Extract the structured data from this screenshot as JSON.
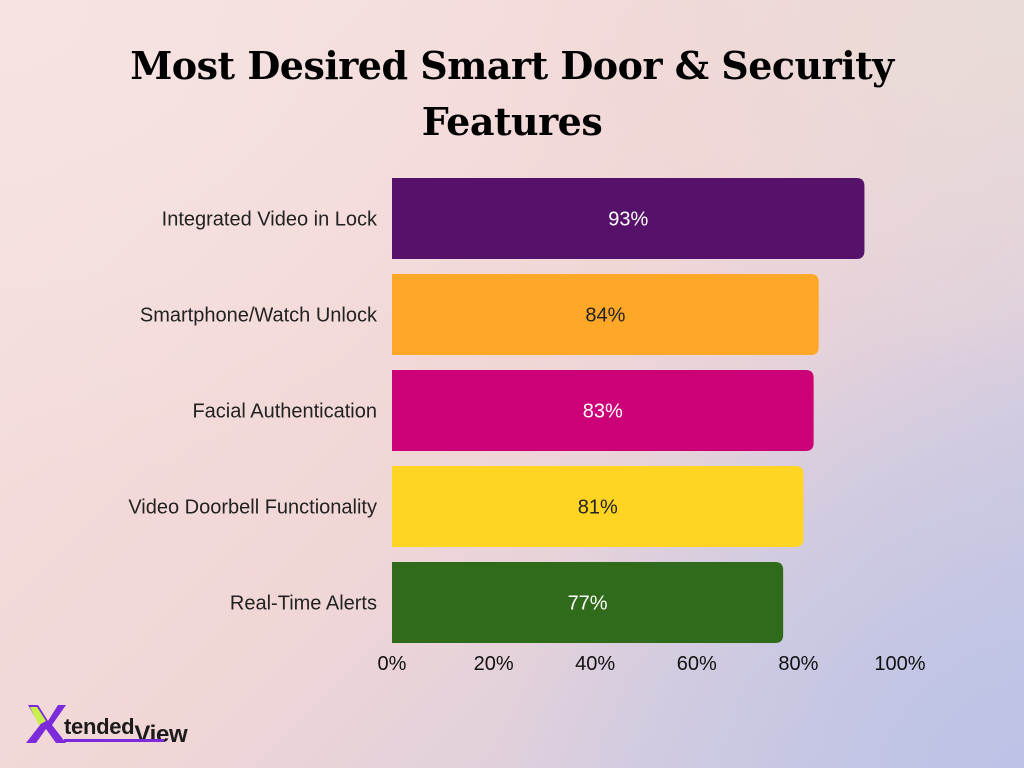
{
  "title_lines": [
    "Most Desired Smart Door & Security",
    "Features"
  ],
  "logo": {
    "text_main": "tended",
    "text_view": "View"
  },
  "chart_data": {
    "type": "bar",
    "orientation": "horizontal",
    "title": "Most Desired Smart Door & Security Features",
    "categories": [
      "Integrated Video in Lock",
      "Smartphone/Watch Unlock",
      "Facial Authentication",
      "Video Doorbell Functionality",
      "Real-Time Alerts"
    ],
    "values": [
      93,
      84,
      83,
      81,
      77
    ],
    "value_labels": [
      "93%",
      "84%",
      "83%",
      "81%",
      "77%"
    ],
    "colors": [
      "#56126a",
      "#ffa726",
      "#cc0077",
      "#ffd422",
      "#2f6b1a"
    ],
    "label_colors": [
      "#ffffff",
      "#222222",
      "#ffffff",
      "#222222",
      "#ffffff"
    ],
    "xlim": [
      0,
      100
    ],
    "x_ticks": [
      "0%",
      "20%",
      "40%",
      "60%",
      "80%",
      "100%"
    ],
    "xlabel": "",
    "ylabel": "",
    "grid": false,
    "legend": "none"
  }
}
